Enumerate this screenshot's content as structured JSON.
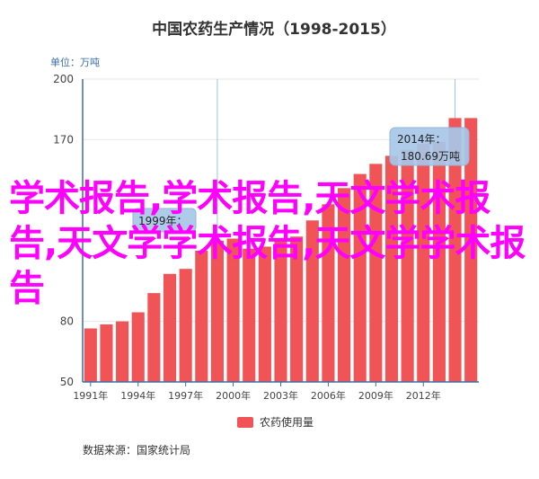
{
  "chart_data": {
    "type": "bar",
    "title": "中国农药生产情况（1998-2015）",
    "unit_label": "单位：万吨",
    "categories": [
      "1991年",
      "1992年",
      "1993年",
      "1994年",
      "1995年",
      "1996年",
      "1997年",
      "1998年",
      "1999年",
      "2000年",
      "2001年",
      "2002年",
      "2003年",
      "2004年",
      "2005年",
      "2006年",
      "2007年",
      "2008年",
      "2009年",
      "2010年",
      "2011年",
      "2012年",
      "2013年",
      "2014年",
      "2015年"
    ],
    "tick_labels": [
      "1991年",
      "1994年",
      "1997年",
      "2000年",
      "2003年",
      "2006年",
      "2009年",
      "2012年"
    ],
    "series": [
      {
        "name": "农药使用量",
        "color": "#f05456",
        "values": [
          76.5,
          78.5,
          80,
          84.5,
          94,
          103.5,
          106,
          115,
          120,
          121,
          116,
          117,
          120,
          122,
          130,
          138,
          146,
          153,
          158,
          162,
          165,
          168,
          169,
          180.69,
          180.69
        ]
      }
    ],
    "ylim": [
      50,
      200
    ],
    "yticks": [
      50,
      80,
      170,
      200
    ],
    "tooltips": [
      {
        "year": "2014年：",
        "value": "180.69万吨"
      },
      {
        "year": "1999年：",
        "value": ""
      }
    ],
    "legend_position": "bottom"
  },
  "overlay_text": "学术报告,学术报告,天文学术报告,天文学学术报告,天文学学术报告",
  "source": "数据来源：国家统计局"
}
